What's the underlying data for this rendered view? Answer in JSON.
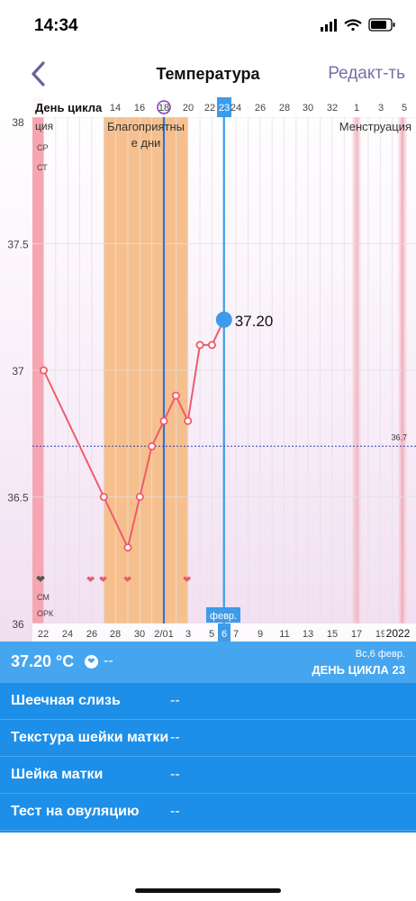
{
  "status": {
    "time": "14:34"
  },
  "nav": {
    "title": "Температура",
    "edit": "Редакт-ть"
  },
  "chart_data": {
    "type": "line",
    "header_label": "День цикла",
    "top_ticks": [
      "14",
      "16",
      "18",
      "20",
      "22",
      "23",
      "24",
      "26",
      "28",
      "30",
      "32",
      "1",
      "3",
      "5"
    ],
    "selected_day": "23",
    "y_ticks": [
      "38",
      "37.5",
      "37",
      "36.5",
      "36"
    ],
    "ylim": [
      36,
      38
    ],
    "bottom_ticks": [
      "22",
      "24",
      "26",
      "28",
      "30",
      "2/01",
      "3",
      "5",
      "6",
      "7",
      "9",
      "11",
      "13",
      "15",
      "17",
      "19",
      "21"
    ],
    "selected_date": "6",
    "month_badge": "февр.",
    "year_label": "2022",
    "coverline": {
      "value": 36.7,
      "label": "36.7"
    },
    "series": [
      {
        "values": [
          {
            "x": "22.01",
            "y": 37.0
          },
          {
            "x": "27.01",
            "y": 36.5
          },
          {
            "x": "29.01",
            "y": 36.3
          },
          {
            "x": "30.01",
            "y": 36.5
          },
          {
            "x": "31.01",
            "y": 36.7
          },
          {
            "x": "01.02",
            "y": 36.8
          },
          {
            "x": "02.02",
            "y": 36.9
          },
          {
            "x": "03.02",
            "y": 36.8
          },
          {
            "x": "04.02",
            "y": 37.1
          },
          {
            "x": "05.02",
            "y": 37.1
          },
          {
            "x": "06.02",
            "y": 37.2
          }
        ]
      }
    ],
    "selected_value": "37.20",
    "fertile_label": "Благоприятные дни",
    "menstruation_label": "Менструация",
    "menstruation_left": "ция",
    "left_labels": {
      "cp": "СР",
      "ct": "СТ",
      "cm": "СМ",
      "opk": "ОРК"
    },
    "colors": {
      "line": "#ef5b6b",
      "fertile": "#f6c08e",
      "selected": "#3d9be9",
      "menstruation": "#f5a8b4"
    }
  },
  "summary": {
    "temp": "37.20 °C",
    "dash": "--",
    "date": "Вс,6 февр.",
    "day": "ДЕНЬ ЦИКЛА 23"
  },
  "rows": [
    {
      "label": "Шеечная слизь",
      "value": "--"
    },
    {
      "label": "Текстура шейки матки",
      "value": "--"
    },
    {
      "label": "Шейка матки",
      "value": "--"
    },
    {
      "label": "Тест на овуляцию",
      "value": "--"
    }
  ]
}
